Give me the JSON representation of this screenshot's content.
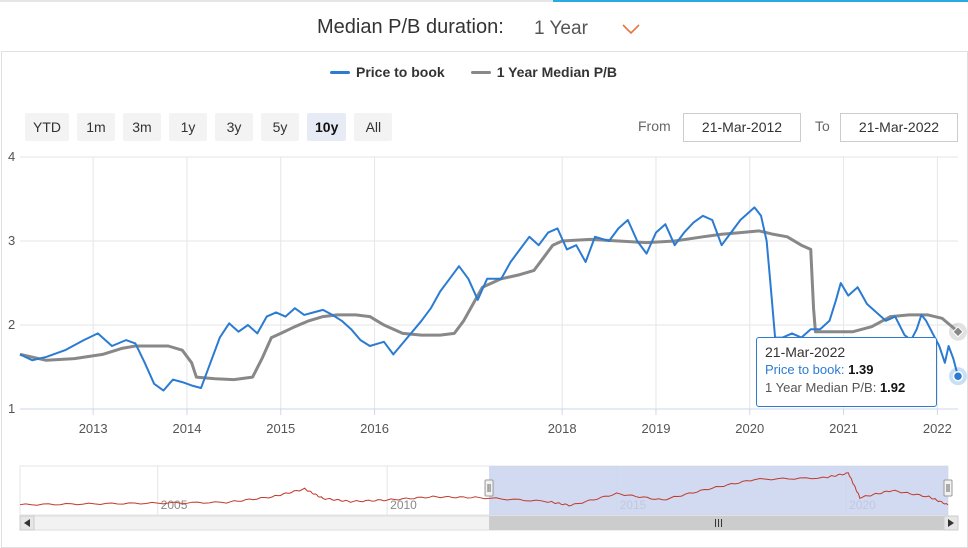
{
  "duration": {
    "label": "Median P/B duration:",
    "value": "1 Year"
  },
  "legend": [
    {
      "name": "Price to book",
      "color": "#2b7bd3"
    },
    {
      "name": "1 Year Median P/B",
      "color": "#888888"
    }
  ],
  "range_buttons": [
    "YTD",
    "1m",
    "3m",
    "1y",
    "3y",
    "5y",
    "10y",
    "All"
  ],
  "active_range": "10y",
  "dates": {
    "from_label": "From",
    "from_value": "21-Mar-2012",
    "to_label": "To",
    "to_value": "21-Mar-2022"
  },
  "tooltip": {
    "date": "21-Mar-2022",
    "pb_label": "Price to book:",
    "pb_value": "1.39",
    "median_label": "1 Year Median P/B:",
    "median_value": "1.92"
  },
  "colors": {
    "price_to_book": "#2b7bd3",
    "median": "#888888",
    "navigator_line": "#c0392b",
    "navigator_mask": "#c9d4ee",
    "grid": "#e6e6e6",
    "accent": "#29abe2",
    "chevron": "#e8743b"
  },
  "chart_data": {
    "type": "line",
    "title": "",
    "xlabel": "",
    "ylabel": "",
    "x_range": [
      2012.22,
      2022.22
    ],
    "ylim": [
      1,
      4
    ],
    "y_ticks": [
      1,
      2,
      3,
      4
    ],
    "x_ticks": [
      "2013",
      "2014",
      "2015",
      "2016",
      "2018",
      "2019",
      "2020",
      "2021",
      "2022"
    ],
    "x_tick_values": [
      2013,
      2014,
      2015,
      2016,
      2018,
      2019,
      2020,
      2021,
      2022
    ],
    "grid": true,
    "legend_position": "top",
    "series": [
      {
        "name": "Price to book",
        "points": [
          [
            2012.22,
            1.65
          ],
          [
            2012.35,
            1.58
          ],
          [
            2012.5,
            1.62
          ],
          [
            2012.7,
            1.7
          ],
          [
            2012.9,
            1.82
          ],
          [
            2013.05,
            1.9
          ],
          [
            2013.2,
            1.75
          ],
          [
            2013.35,
            1.82
          ],
          [
            2013.45,
            1.78
          ],
          [
            2013.55,
            1.55
          ],
          [
            2013.65,
            1.3
          ],
          [
            2013.75,
            1.22
          ],
          [
            2013.85,
            1.35
          ],
          [
            2013.95,
            1.32
          ],
          [
            2014.05,
            1.28
          ],
          [
            2014.15,
            1.25
          ],
          [
            2014.25,
            1.55
          ],
          [
            2014.35,
            1.85
          ],
          [
            2014.45,
            2.02
          ],
          [
            2014.55,
            1.92
          ],
          [
            2014.65,
            2.0
          ],
          [
            2014.75,
            1.9
          ],
          [
            2014.85,
            2.1
          ],
          [
            2014.95,
            2.15
          ],
          [
            2015.05,
            2.1
          ],
          [
            2015.15,
            2.2
          ],
          [
            2015.25,
            2.12
          ],
          [
            2015.35,
            2.15
          ],
          [
            2015.45,
            2.18
          ],
          [
            2015.55,
            2.12
          ],
          [
            2015.65,
            2.05
          ],
          [
            2015.75,
            1.95
          ],
          [
            2015.85,
            1.82
          ],
          [
            2015.95,
            1.75
          ],
          [
            2016.1,
            1.8
          ],
          [
            2016.2,
            1.65
          ],
          [
            2016.35,
            1.85
          ],
          [
            2016.5,
            2.05
          ],
          [
            2016.6,
            2.2
          ],
          [
            2016.7,
            2.4
          ],
          [
            2016.8,
            2.55
          ],
          [
            2016.9,
            2.7
          ],
          [
            2017.0,
            2.55
          ],
          [
            2017.1,
            2.3
          ],
          [
            2017.2,
            2.55
          ],
          [
            2017.35,
            2.55
          ],
          [
            2017.45,
            2.75
          ],
          [
            2017.55,
            2.9
          ],
          [
            2017.65,
            3.05
          ],
          [
            2017.75,
            2.95
          ],
          [
            2017.85,
            3.1
          ],
          [
            2017.95,
            3.15
          ],
          [
            2018.05,
            2.9
          ],
          [
            2018.15,
            2.95
          ],
          [
            2018.25,
            2.75
          ],
          [
            2018.35,
            3.05
          ],
          [
            2018.5,
            3.0
          ],
          [
            2018.6,
            3.15
          ],
          [
            2018.7,
            3.25
          ],
          [
            2018.8,
            3.0
          ],
          [
            2018.9,
            2.85
          ],
          [
            2019.0,
            3.1
          ],
          [
            2019.1,
            3.2
          ],
          [
            2019.2,
            2.95
          ],
          [
            2019.3,
            3.1
          ],
          [
            2019.4,
            3.22
          ],
          [
            2019.5,
            3.3
          ],
          [
            2019.6,
            3.25
          ],
          [
            2019.7,
            2.95
          ],
          [
            2019.8,
            3.1
          ],
          [
            2019.9,
            3.25
          ],
          [
            2020.0,
            3.35
          ],
          [
            2020.05,
            3.4
          ],
          [
            2020.12,
            3.3
          ],
          [
            2020.18,
            3.0
          ],
          [
            2020.22,
            2.5
          ],
          [
            2020.27,
            1.85
          ],
          [
            2020.35,
            1.85
          ],
          [
            2020.45,
            1.9
          ],
          [
            2020.55,
            1.85
          ],
          [
            2020.65,
            1.95
          ],
          [
            2020.75,
            1.95
          ],
          [
            2020.85,
            2.05
          ],
          [
            2020.92,
            2.3
          ],
          [
            2020.97,
            2.5
          ],
          [
            2021.05,
            2.35
          ],
          [
            2021.15,
            2.45
          ],
          [
            2021.25,
            2.25
          ],
          [
            2021.35,
            2.15
          ],
          [
            2021.45,
            2.05
          ],
          [
            2021.55,
            2.1
          ],
          [
            2021.65,
            1.88
          ],
          [
            2021.72,
            1.82
          ],
          [
            2021.78,
            1.95
          ],
          [
            2021.83,
            2.12
          ],
          [
            2021.88,
            2.05
          ],
          [
            2021.95,
            1.9
          ],
          [
            2022.02,
            1.75
          ],
          [
            2022.08,
            1.55
          ],
          [
            2022.12,
            1.75
          ],
          [
            2022.17,
            1.6
          ],
          [
            2022.22,
            1.39
          ]
        ]
      },
      {
        "name": "1 Year Median P/B",
        "points": [
          [
            2012.22,
            1.65
          ],
          [
            2012.5,
            1.58
          ],
          [
            2012.8,
            1.6
          ],
          [
            2013.1,
            1.65
          ],
          [
            2013.3,
            1.72
          ],
          [
            2013.45,
            1.75
          ],
          [
            2013.6,
            1.75
          ],
          [
            2013.8,
            1.75
          ],
          [
            2013.95,
            1.7
          ],
          [
            2014.05,
            1.55
          ],
          [
            2014.1,
            1.38
          ],
          [
            2014.3,
            1.36
          ],
          [
            2014.5,
            1.35
          ],
          [
            2014.7,
            1.38
          ],
          [
            2014.8,
            1.6
          ],
          [
            2014.9,
            1.85
          ],
          [
            2015.0,
            1.9
          ],
          [
            2015.15,
            1.98
          ],
          [
            2015.3,
            2.05
          ],
          [
            2015.45,
            2.1
          ],
          [
            2015.6,
            2.12
          ],
          [
            2015.8,
            2.12
          ],
          [
            2015.95,
            2.1
          ],
          [
            2016.1,
            2.0
          ],
          [
            2016.3,
            1.9
          ],
          [
            2016.5,
            1.88
          ],
          [
            2016.7,
            1.88
          ],
          [
            2016.85,
            1.9
          ],
          [
            2016.95,
            2.05
          ],
          [
            2017.05,
            2.25
          ],
          [
            2017.15,
            2.45
          ],
          [
            2017.35,
            2.55
          ],
          [
            2017.55,
            2.6
          ],
          [
            2017.7,
            2.65
          ],
          [
            2017.8,
            2.8
          ],
          [
            2017.9,
            2.95
          ],
          [
            2018.0,
            3.0
          ],
          [
            2018.3,
            3.02
          ],
          [
            2018.6,
            3.0
          ],
          [
            2018.9,
            2.98
          ],
          [
            2019.2,
            3.0
          ],
          [
            2019.5,
            3.05
          ],
          [
            2019.7,
            3.08
          ],
          [
            2019.9,
            3.1
          ],
          [
            2020.1,
            3.12
          ],
          [
            2020.25,
            3.08
          ],
          [
            2020.4,
            3.05
          ],
          [
            2020.55,
            2.95
          ],
          [
            2020.65,
            2.9
          ],
          [
            2020.68,
            2.2
          ],
          [
            2020.7,
            1.92
          ],
          [
            2020.9,
            1.92
          ],
          [
            2021.1,
            1.92
          ],
          [
            2021.3,
            1.98
          ],
          [
            2021.5,
            2.1
          ],
          [
            2021.7,
            2.12
          ],
          [
            2021.9,
            2.12
          ],
          [
            2022.05,
            2.08
          ],
          [
            2022.22,
            1.92
          ]
        ]
      }
    ],
    "navigator": {
      "x_ticks": [
        "2005",
        "2010",
        "2015",
        "2020"
      ],
      "x_tick_values": [
        2005,
        2010,
        2015,
        2020
      ],
      "x_range": [
        2002.0,
        2022.22
      ],
      "selected": [
        2012.22,
        2022.22
      ],
      "points": [
        [
          2002.0,
          1.4
        ],
        [
          2003.5,
          1.45
        ],
        [
          2005.0,
          1.5
        ],
        [
          2006.5,
          1.55
        ],
        [
          2007.5,
          1.9
        ],
        [
          2008.2,
          2.4
        ],
        [
          2008.6,
          1.8
        ],
        [
          2009.2,
          1.6
        ],
        [
          2010.0,
          1.7
        ],
        [
          2011.0,
          1.9
        ],
        [
          2012.0,
          1.85
        ],
        [
          2013.5,
          1.6
        ],
        [
          2014.0,
          1.35
        ],
        [
          2015.0,
          2.1
        ],
        [
          2016.0,
          1.7
        ],
        [
          2017.0,
          2.4
        ],
        [
          2018.0,
          3.0
        ],
        [
          2019.5,
          3.1
        ],
        [
          2020.05,
          3.4
        ],
        [
          2020.3,
          1.85
        ],
        [
          2021.0,
          2.3
        ],
        [
          2021.8,
          1.9
        ],
        [
          2022.22,
          1.39
        ]
      ]
    }
  }
}
